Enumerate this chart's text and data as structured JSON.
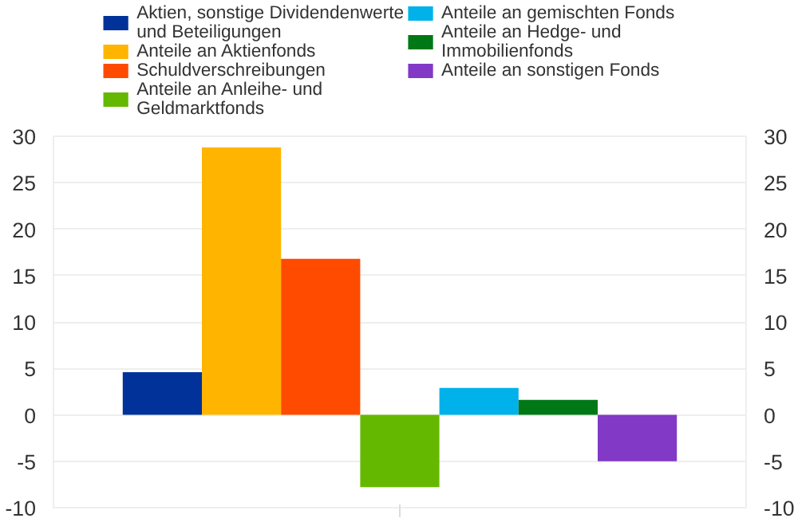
{
  "chart_data": {
    "type": "bar",
    "categories": [
      null
    ],
    "series": [
      {
        "name": "Aktien, sonstige Dividendenwerte und Beteiligungen",
        "color": "#003299",
        "values": [
          4.6
        ]
      },
      {
        "name": "Anteile an Aktienfonds",
        "color": "#ffb400",
        "values": [
          28.8
        ]
      },
      {
        "name": "Schuldverschreibungen",
        "color": "#ff4b00",
        "values": [
          16.8
        ]
      },
      {
        "name": "Anteile an Anleihe- und Geldmarktfonds",
        "color": "#65b800",
        "values": [
          -7.8
        ]
      },
      {
        "name": "Anteile an gemischten Fonds",
        "color": "#00b1ea",
        "values": [
          2.9
        ]
      },
      {
        "name": "Anteile an Hedge- und Immobilienfonds",
        "color": "#007816",
        "values": [
          1.6
        ]
      },
      {
        "name": "Anteile an sonstigen Fonds",
        "color": "#8139c6",
        "values": [
          -5.0
        ]
      }
    ],
    "ylim": [
      -10,
      30
    ],
    "yticks": [
      -10,
      -5,
      0,
      5,
      10,
      15,
      20,
      25,
      30
    ],
    "y2lim": [
      -10,
      30
    ],
    "y2ticks": [
      -10,
      -5,
      0,
      5,
      10,
      15,
      20,
      25,
      30
    ],
    "grid": "y",
    "legend": "top"
  }
}
